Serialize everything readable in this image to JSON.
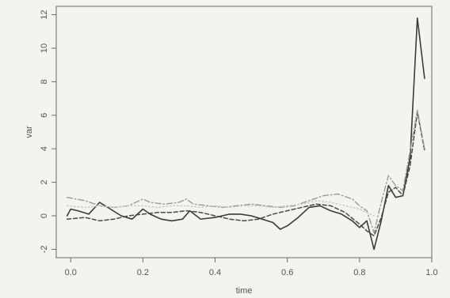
{
  "chart_data": {
    "type": "line",
    "title": "",
    "xlabel": "time",
    "ylabel": "var",
    "xlim": [
      -0.04,
      1.0
    ],
    "ylim": [
      -2.5,
      12.5
    ],
    "x_ticks": [
      0.0,
      0.2,
      0.4,
      0.6,
      0.8,
      1.0
    ],
    "x_tick_labels": [
      "0.0",
      "0.2",
      "0.4",
      "0.6",
      "0.8",
      "1.0"
    ],
    "y_ticks": [
      -2,
      0,
      2,
      4,
      6,
      8,
      10,
      12
    ],
    "y_tick_labels": [
      "-2",
      "0",
      "2",
      "4",
      "6",
      "8",
      "10",
      "12"
    ],
    "grid": false,
    "legend": "none",
    "series": [
      {
        "style": "solid",
        "color": "#3a3a3a",
        "x": [
          -0.01,
          0.0,
          0.02,
          0.05,
          0.08,
          0.11,
          0.14,
          0.17,
          0.2,
          0.22,
          0.25,
          0.28,
          0.31,
          0.33,
          0.36,
          0.4,
          0.44,
          0.47,
          0.5,
          0.53,
          0.56,
          0.58,
          0.6,
          0.63,
          0.66,
          0.69,
          0.72,
          0.75,
          0.78,
          0.8,
          0.82,
          0.84,
          0.86,
          0.88,
          0.9,
          0.92,
          0.94,
          0.96,
          0.98
        ],
        "y": [
          0.0,
          0.4,
          0.3,
          0.1,
          0.8,
          0.4,
          0.0,
          -0.2,
          0.4,
          0.1,
          -0.2,
          -0.3,
          -0.2,
          0.3,
          -0.2,
          -0.1,
          0.1,
          0.1,
          0.0,
          -0.2,
          -0.4,
          -0.8,
          -0.6,
          -0.1,
          0.5,
          0.6,
          0.3,
          0.1,
          -0.3,
          -0.7,
          -0.3,
          -2.0,
          -0.3,
          1.8,
          1.1,
          1.2,
          3.5,
          11.8,
          8.2
        ]
      },
      {
        "style": "dashed",
        "color": "#4a4a4a",
        "x": [
          -0.01,
          0.04,
          0.08,
          0.12,
          0.16,
          0.2,
          0.24,
          0.28,
          0.32,
          0.36,
          0.4,
          0.44,
          0.48,
          0.52,
          0.56,
          0.6,
          0.64,
          0.68,
          0.72,
          0.76,
          0.8,
          0.82,
          0.84,
          0.86,
          0.88,
          0.9,
          0.92,
          0.94,
          0.96,
          0.98
        ],
        "y": [
          -0.2,
          -0.1,
          -0.3,
          -0.2,
          0.0,
          0.1,
          0.2,
          0.2,
          0.3,
          0.2,
          0.0,
          -0.2,
          -0.3,
          -0.2,
          0.1,
          0.3,
          0.5,
          0.7,
          0.6,
          0.2,
          -0.5,
          -0.9,
          -1.2,
          -0.1,
          1.4,
          1.7,
          1.2,
          3.0,
          6.2,
          3.9
        ]
      },
      {
        "style": "dotdash",
        "color": "#9a9a9a",
        "x": [
          -0.01,
          0.04,
          0.08,
          0.12,
          0.16,
          0.18,
          0.2,
          0.22,
          0.26,
          0.3,
          0.32,
          0.34,
          0.38,
          0.42,
          0.46,
          0.5,
          0.54,
          0.58,
          0.62,
          0.66,
          0.7,
          0.74,
          0.78,
          0.8,
          0.82,
          0.84,
          0.86,
          0.88,
          0.9,
          0.92,
          0.94,
          0.96,
          0.98
        ],
        "y": [
          1.1,
          0.9,
          0.6,
          0.5,
          0.6,
          0.8,
          1.0,
          0.8,
          0.7,
          0.8,
          1.0,
          0.7,
          0.6,
          0.5,
          0.6,
          0.7,
          0.6,
          0.5,
          0.6,
          0.9,
          1.2,
          1.3,
          1.0,
          0.6,
          0.3,
          -1.0,
          0.8,
          2.4,
          1.8,
          1.5,
          3.9,
          6.3,
          4.0
        ]
      },
      {
        "style": "dotted",
        "color": "#c8c8c8",
        "x": [
          -0.01,
          0.04,
          0.08,
          0.12,
          0.16,
          0.2,
          0.24,
          0.28,
          0.32,
          0.36,
          0.4,
          0.44,
          0.48,
          0.52,
          0.56,
          0.6,
          0.64,
          0.68,
          0.72,
          0.76,
          0.8,
          0.84
        ],
        "y": [
          0.6,
          0.5,
          0.6,
          0.5,
          0.6,
          0.6,
          0.5,
          0.6,
          0.6,
          0.5,
          0.6,
          0.5,
          0.6,
          0.6,
          0.5,
          0.6,
          0.7,
          0.9,
          0.8,
          0.6,
          0.4,
          0.0
        ]
      }
    ]
  }
}
